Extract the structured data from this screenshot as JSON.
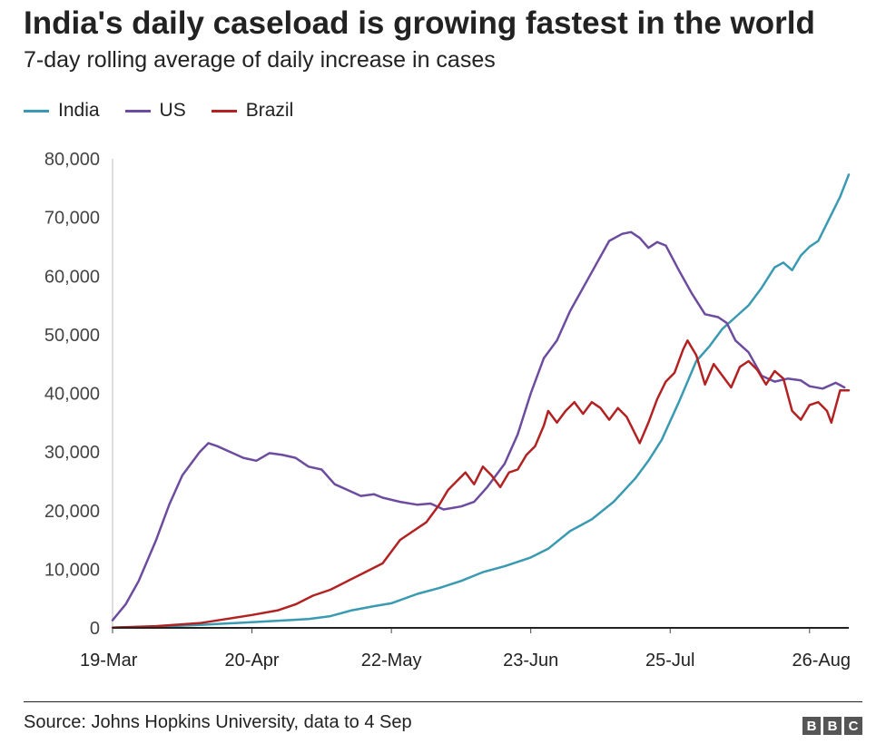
{
  "header": {
    "title": "India's daily caseload is growing fastest in the world",
    "subtitle": "7-day rolling average of daily increase in cases"
  },
  "footer": {
    "source": "Source: Johns Hopkins University, data to 4 Sep",
    "logo_letters": [
      "B",
      "B",
      "C"
    ]
  },
  "chart_data": {
    "type": "line",
    "title": "India's daily caseload is growing fastest in the world",
    "subtitle": "7-day rolling average of daily increase in cases",
    "xlabel": "",
    "ylabel": "",
    "x_start": "19-Mar",
    "x_end": "4-Sep",
    "x_tick_labels": [
      "19-Mar",
      "20-Apr",
      "22-May",
      "23-Jun",
      "25-Jul",
      "26-Aug"
    ],
    "x_tick_days": [
      0,
      32,
      64,
      96,
      128,
      160
    ],
    "x_range_days": [
      0,
      169
    ],
    "ylim": [
      0,
      80000
    ],
    "y_ticks": [
      0,
      10000,
      20000,
      30000,
      40000,
      50000,
      60000,
      70000,
      80000
    ],
    "y_tick_labels": [
      "0",
      "10,000",
      "20,000",
      "30,000",
      "40,000",
      "50,000",
      "60,000",
      "70,000",
      "80,000"
    ],
    "legend_position": "top-left",
    "grid": false,
    "series": [
      {
        "name": "India",
        "color": "#3a9ab2",
        "points": [
          [
            0,
            50
          ],
          [
            10,
            200
          ],
          [
            20,
            500
          ],
          [
            30,
            900
          ],
          [
            40,
            1300
          ],
          [
            45,
            1500
          ],
          [
            50,
            2000
          ],
          [
            55,
            3000
          ],
          [
            60,
            3700
          ],
          [
            64,
            4200
          ],
          [
            70,
            5800
          ],
          [
            75,
            6800
          ],
          [
            80,
            8000
          ],
          [
            85,
            9500
          ],
          [
            90,
            10500
          ],
          [
            96,
            12000
          ],
          [
            100,
            13500
          ],
          [
            105,
            16500
          ],
          [
            110,
            18500
          ],
          [
            115,
            21500
          ],
          [
            120,
            25500
          ],
          [
            123,
            28500
          ],
          [
            126,
            32000
          ],
          [
            130,
            38500
          ],
          [
            132,
            42000
          ],
          [
            134,
            45500
          ],
          [
            137,
            48000
          ],
          [
            140,
            51000
          ],
          [
            143,
            53000
          ],
          [
            146,
            55000
          ],
          [
            149,
            58000
          ],
          [
            152,
            61500
          ],
          [
            154,
            62300
          ],
          [
            156,
            61000
          ],
          [
            158,
            63500
          ],
          [
            160,
            65000
          ],
          [
            162,
            66000
          ],
          [
            164,
            69000
          ],
          [
            166,
            72000
          ],
          [
            167,
            73500
          ],
          [
            169,
            77300
          ]
        ]
      },
      {
        "name": "US",
        "color": "#6d4c9f",
        "points": [
          [
            0,
            1300
          ],
          [
            3,
            4000
          ],
          [
            6,
            8000
          ],
          [
            10,
            15000
          ],
          [
            13,
            21000
          ],
          [
            16,
            26000
          ],
          [
            20,
            30000
          ],
          [
            22,
            31500
          ],
          [
            24,
            31000
          ],
          [
            27,
            30000
          ],
          [
            30,
            29000
          ],
          [
            33,
            28500
          ],
          [
            36,
            29800
          ],
          [
            39,
            29500
          ],
          [
            42,
            29000
          ],
          [
            45,
            27500
          ],
          [
            48,
            27000
          ],
          [
            51,
            24500
          ],
          [
            54,
            23500
          ],
          [
            57,
            22500
          ],
          [
            60,
            22800
          ],
          [
            62,
            22200
          ],
          [
            66,
            21500
          ],
          [
            70,
            21000
          ],
          [
            73,
            21200
          ],
          [
            76,
            20200
          ],
          [
            80,
            20700
          ],
          [
            83,
            21500
          ],
          [
            86,
            24000
          ],
          [
            90,
            28000
          ],
          [
            93,
            33000
          ],
          [
            96,
            40000
          ],
          [
            99,
            46000
          ],
          [
            102,
            49000
          ],
          [
            105,
            54000
          ],
          [
            108,
            58000
          ],
          [
            111,
            62000
          ],
          [
            114,
            66000
          ],
          [
            117,
            67200
          ],
          [
            119,
            67500
          ],
          [
            121,
            66500
          ],
          [
            123,
            64800
          ],
          [
            125,
            65800
          ],
          [
            127,
            65200
          ],
          [
            130,
            61000
          ],
          [
            133,
            57000
          ],
          [
            136,
            53500
          ],
          [
            139,
            53000
          ],
          [
            141,
            52000
          ],
          [
            143,
            49000
          ],
          [
            146,
            47000
          ],
          [
            149,
            43000
          ],
          [
            152,
            42000
          ],
          [
            155,
            42500
          ],
          [
            158,
            42200
          ],
          [
            160,
            41200
          ],
          [
            163,
            40800
          ],
          [
            166,
            41800
          ],
          [
            168,
            41000
          ]
        ]
      },
      {
        "name": "Brazil",
        "color": "#b22222",
        "points": [
          [
            0,
            50
          ],
          [
            10,
            300
          ],
          [
            20,
            800
          ],
          [
            26,
            1500
          ],
          [
            32,
            2200
          ],
          [
            38,
            3000
          ],
          [
            42,
            4000
          ],
          [
            46,
            5500
          ],
          [
            50,
            6500
          ],
          [
            54,
            8000
          ],
          [
            58,
            9500
          ],
          [
            62,
            11000
          ],
          [
            64,
            13000
          ],
          [
            66,
            15000
          ],
          [
            69,
            16500
          ],
          [
            72,
            18000
          ],
          [
            75,
            21000
          ],
          [
            77,
            23500
          ],
          [
            79,
            25000
          ],
          [
            81,
            26500
          ],
          [
            83,
            24500
          ],
          [
            85,
            27500
          ],
          [
            87,
            26000
          ],
          [
            89,
            24000
          ],
          [
            91,
            26500
          ],
          [
            93,
            27000
          ],
          [
            95,
            29500
          ],
          [
            97,
            31000
          ],
          [
            99,
            34500
          ],
          [
            100,
            37000
          ],
          [
            102,
            35000
          ],
          [
            104,
            37000
          ],
          [
            106,
            38500
          ],
          [
            108,
            36500
          ],
          [
            110,
            38500
          ],
          [
            112,
            37500
          ],
          [
            114,
            35500
          ],
          [
            116,
            37500
          ],
          [
            118,
            36000
          ],
          [
            120,
            33000
          ],
          [
            121,
            31500
          ],
          [
            123,
            35000
          ],
          [
            125,
            39000
          ],
          [
            127,
            42000
          ],
          [
            129,
            43500
          ],
          [
            131,
            47500
          ],
          [
            132,
            49000
          ],
          [
            134,
            46500
          ],
          [
            136,
            41500
          ],
          [
            138,
            45000
          ],
          [
            140,
            43000
          ],
          [
            142,
            41000
          ],
          [
            144,
            44500
          ],
          [
            146,
            45500
          ],
          [
            148,
            44000
          ],
          [
            150,
            41500
          ],
          [
            152,
            43800
          ],
          [
            154,
            42500
          ],
          [
            156,
            37000
          ],
          [
            158,
            35500
          ],
          [
            160,
            38000
          ],
          [
            162,
            38500
          ],
          [
            164,
            37000
          ],
          [
            165,
            35000
          ],
          [
            167,
            40500
          ],
          [
            169,
            40500
          ]
        ]
      }
    ]
  }
}
